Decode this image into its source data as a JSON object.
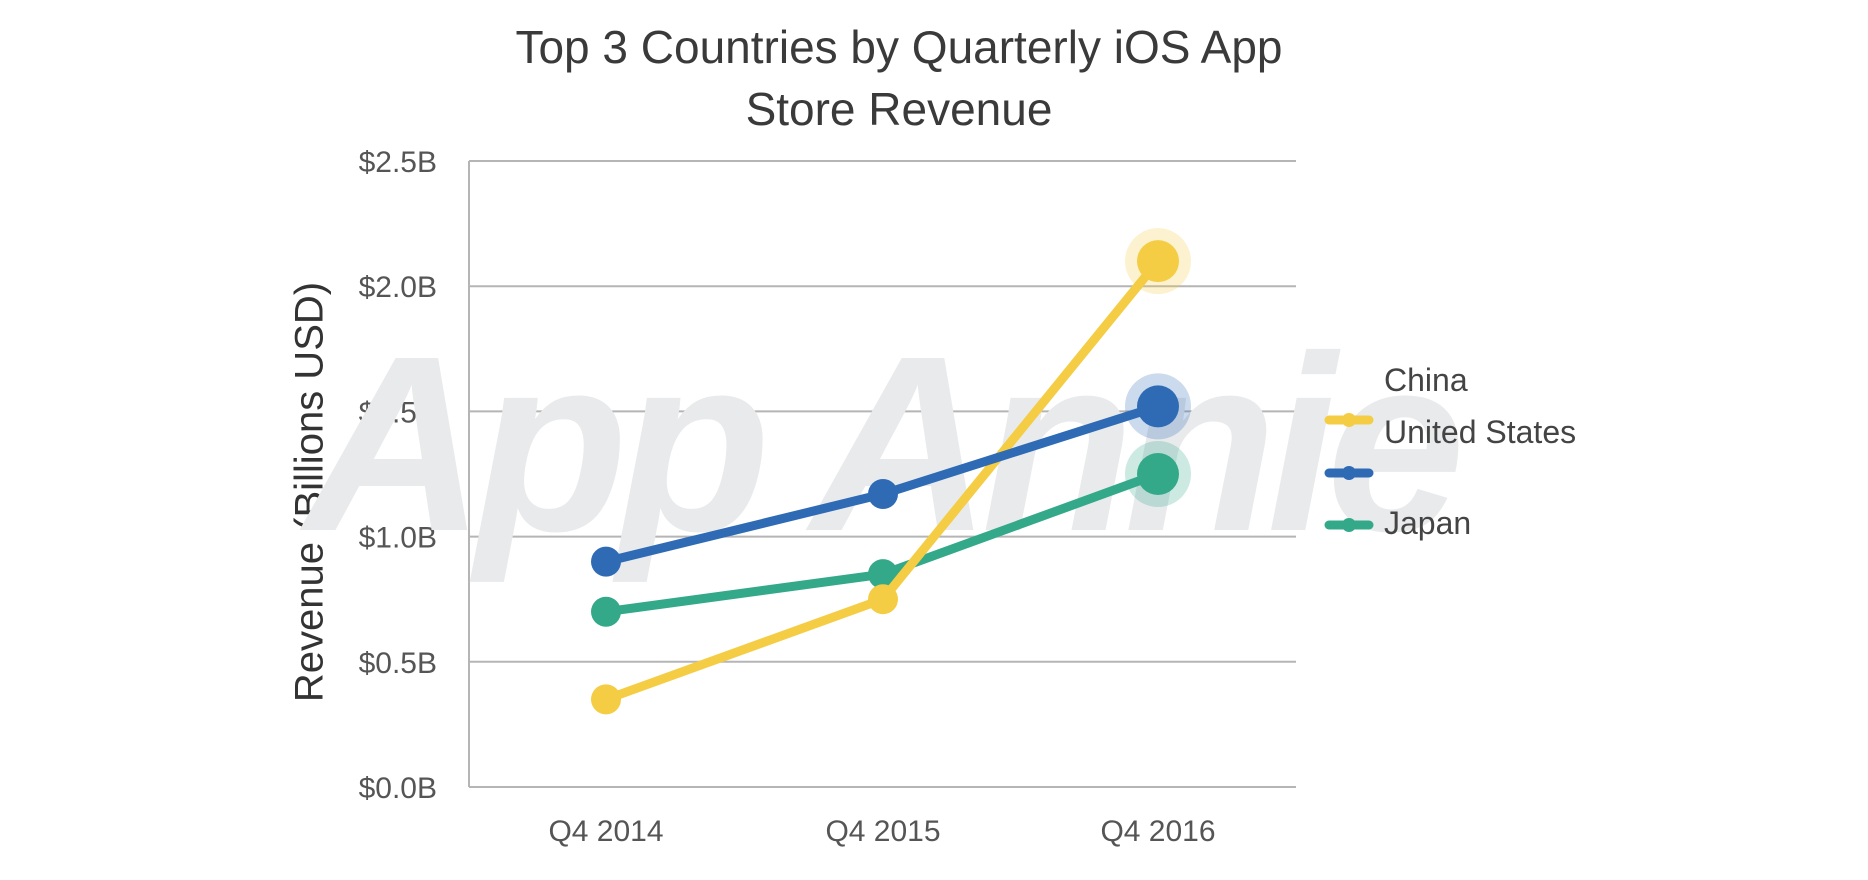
{
  "chart_data": {
    "type": "line",
    "title": "Top 3 Countries by Quarterly iOS App Store Revenue",
    "title_lines": [
      "Top 3 Countries by Quarterly iOS App",
      "Store Revenue"
    ],
    "xlabel": "",
    "ylabel": "Revenue (Billions USD)",
    "categories": [
      "Q4 2014",
      "Q4 2015",
      "Q4 2016"
    ],
    "ylim": [
      0,
      2.5
    ],
    "yticks": [
      0,
      0.5,
      1.0,
      1.5,
      2.0,
      2.5
    ],
    "ytick_labels": [
      "$0.0B",
      "$0.5B",
      "$1.0B",
      "$1.5B",
      "$2.0B",
      "$2.5B"
    ],
    "grid": true,
    "legend_position": "right",
    "watermark": "App Annie",
    "series": [
      {
        "name": "China",
        "color": "#f4cd44",
        "values": [
          0.35,
          0.75,
          2.1
        ]
      },
      {
        "name": "United States",
        "color": "#2f6bb5",
        "values": [
          0.9,
          1.17,
          1.52
        ]
      },
      {
        "name": "Japan",
        "color": "#34a98a",
        "values": [
          0.7,
          0.85,
          1.25
        ]
      }
    ]
  }
}
